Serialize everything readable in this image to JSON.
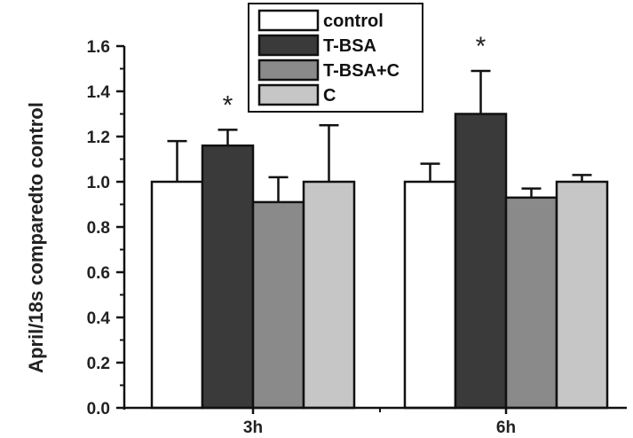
{
  "chart_data": {
    "type": "bar",
    "categories": [
      "3h",
      "6h"
    ],
    "series": [
      {
        "name": "control",
        "values": [
          1.0,
          1.0
        ],
        "errors": [
          0.18,
          0.08
        ],
        "color": "#ffffff"
      },
      {
        "name": "T-BSA",
        "values": [
          1.16,
          1.3
        ],
        "errors": [
          0.07,
          0.19
        ],
        "color": "#3a3a3a"
      },
      {
        "name": "T-BSA+C",
        "values": [
          0.91,
          0.93
        ],
        "errors": [
          0.11,
          0.04
        ],
        "color": "#8a8a8a"
      },
      {
        "name": "C",
        "values": [
          1.0,
          1.0
        ],
        "errors": [
          0.25,
          0.03
        ],
        "color": "#c6c6c6"
      }
    ],
    "yticks": [
      "0.0",
      "0.2",
      "0.4",
      "0.6",
      "0.8",
      "1.0",
      "1.2",
      "1.4",
      "1.6"
    ],
    "ylim": [
      0,
      1.6
    ],
    "ylabel": "April/18s comparedto control",
    "xlabel": "",
    "title": "",
    "annotations": [
      {
        "text": "*",
        "category": "3h",
        "series": "T-BSA"
      },
      {
        "text": "*",
        "category": "6h",
        "series": "T-BSA"
      }
    ],
    "legend_position": "top-center",
    "grid": false
  }
}
